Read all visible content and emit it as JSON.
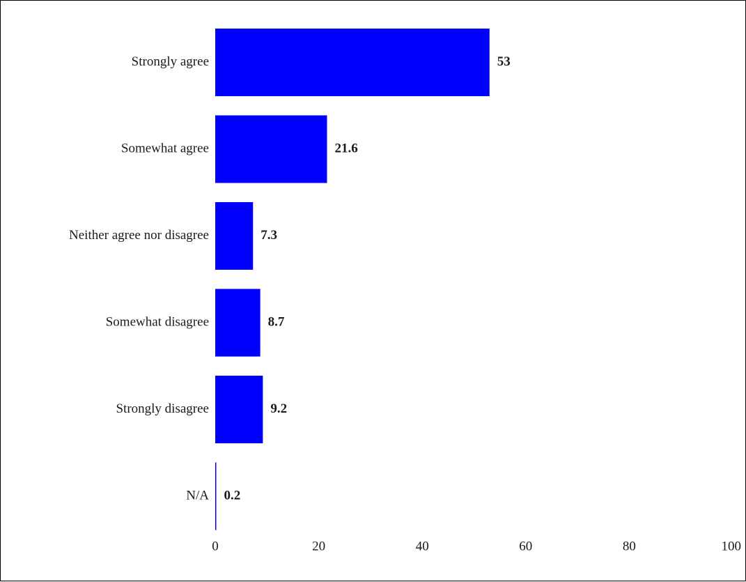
{
  "chart_data": {
    "type": "bar",
    "orientation": "horizontal",
    "title": "",
    "xlabel": "",
    "ylabel": "",
    "categories": [
      "Strongly agree",
      "Somewhat agree",
      "Neither agree nor disagree",
      "Somewhat disagree",
      "Strongly disagree",
      "N/A"
    ],
    "values": [
      53,
      21.6,
      7.3,
      8.7,
      9.2,
      0.2
    ],
    "value_labels": [
      "53",
      "21.6",
      "7.3",
      "8.7",
      "9.2",
      "0.2"
    ],
    "xlim": [
      0,
      100
    ],
    "xticks": [
      0,
      20,
      40,
      60,
      80,
      100
    ],
    "xtick_labels": [
      "0",
      "20",
      "40",
      "60",
      "80",
      "100"
    ],
    "grid": false,
    "legend": "none",
    "bar_color": "#0000ff"
  }
}
